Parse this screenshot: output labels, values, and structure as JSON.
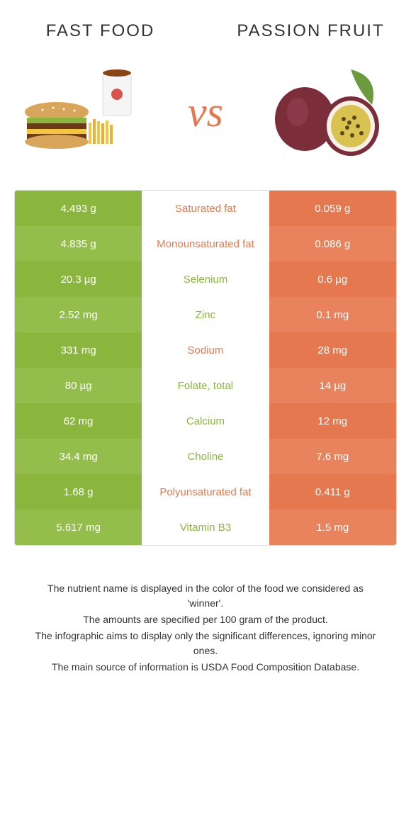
{
  "titles": {
    "left": "FAST FOOD",
    "right": "PASSION FRUIT",
    "vs": "vs"
  },
  "colors": {
    "left_bg": "#8bb63e",
    "right_bg": "#e67850",
    "left_alt_bg": "#94be4c",
    "right_alt_bg": "#e8835e",
    "label_left_color": "#8bb63e",
    "label_right_color": "#e67850",
    "vs_color": "#e67850"
  },
  "rows": [
    {
      "left": "4.493 g",
      "label": "Saturated fat",
      "right": "0.059 g",
      "winner": "right"
    },
    {
      "left": "4.835 g",
      "label": "Monounsaturated fat",
      "right": "0.086 g",
      "winner": "right"
    },
    {
      "left": "20.3 µg",
      "label": "Selenium",
      "right": "0.6 µg",
      "winner": "left"
    },
    {
      "left": "2.52 mg",
      "label": "Zinc",
      "right": "0.1 mg",
      "winner": "left"
    },
    {
      "left": "331 mg",
      "label": "Sodium",
      "right": "28 mg",
      "winner": "right"
    },
    {
      "left": "80 µg",
      "label": "Folate, total",
      "right": "14 µg",
      "winner": "left"
    },
    {
      "left": "62 mg",
      "label": "Calcium",
      "right": "12 mg",
      "winner": "left"
    },
    {
      "left": "34.4 mg",
      "label": "Choline",
      "right": "7.6 mg",
      "winner": "left"
    },
    {
      "left": "1.68 g",
      "label": "Polyunsaturated fat",
      "right": "0.411 g",
      "winner": "right"
    },
    {
      "left": "5.617 mg",
      "label": "Vitamin B3",
      "right": "1.5 mg",
      "winner": "left"
    }
  ],
  "footer": {
    "line1": "The nutrient name is displayed in the color of the food we considered as 'winner'.",
    "line2": "The amounts are specified per 100 gram of the product.",
    "line3": "The infographic aims to display only the significant differences, ignoring minor ones.",
    "line4": "The main source of information is USDA Food Composition Database."
  }
}
